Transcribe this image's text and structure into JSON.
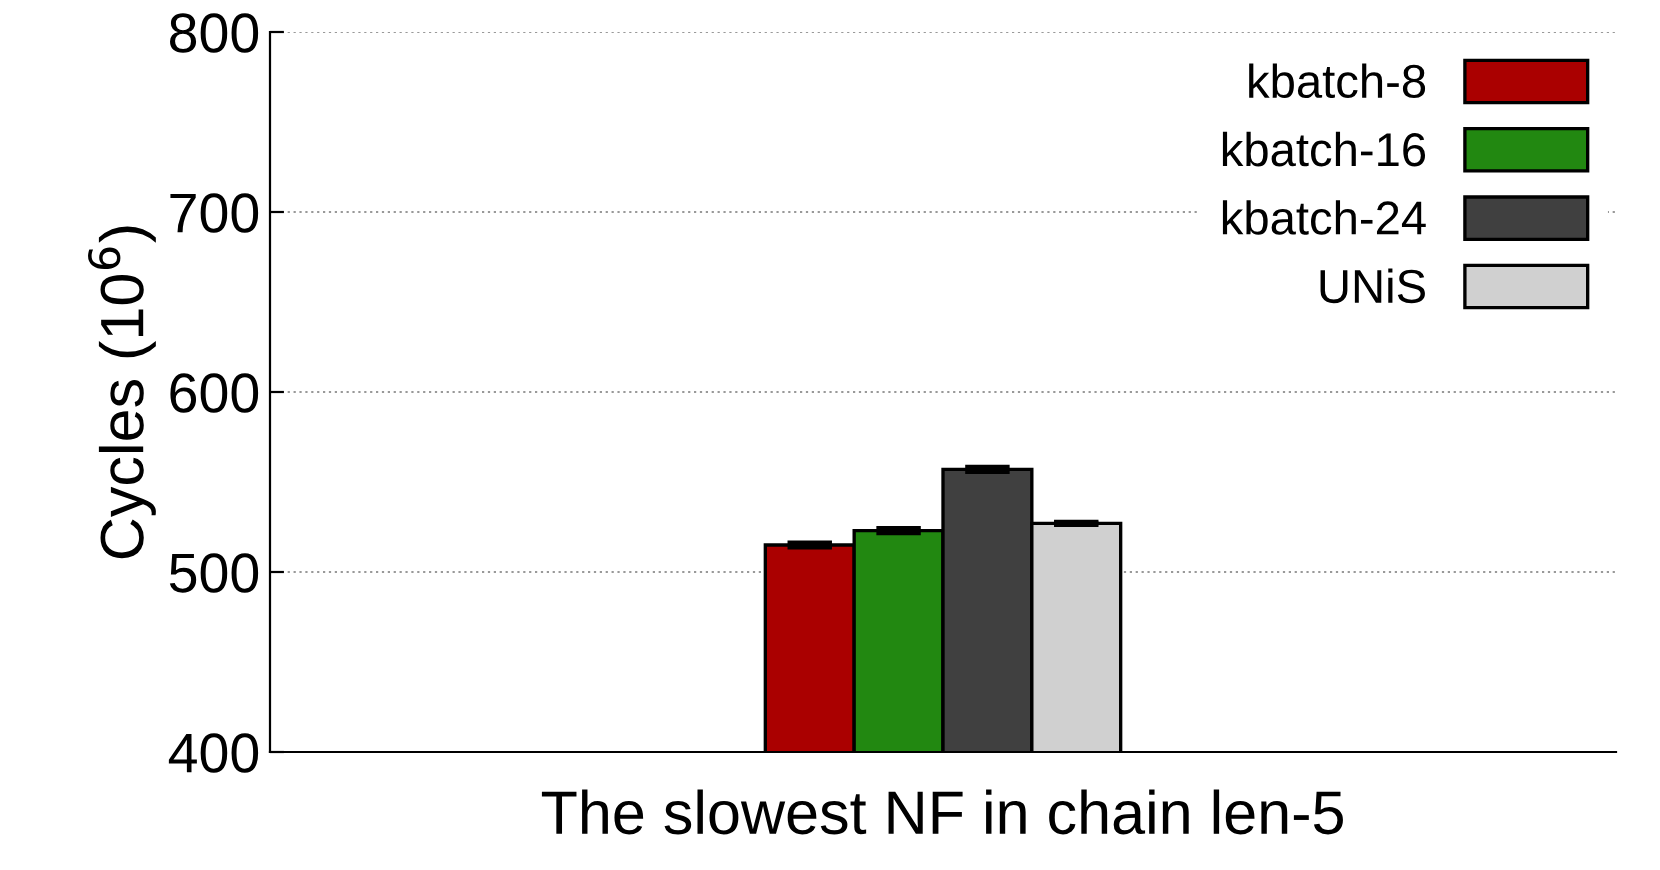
{
  "chart_data": {
    "type": "bar",
    "xlabel": "The slowest NF in chain len-5",
    "ylabel": "Cycles (10$^{6}$)",
    "categories": [
      null
    ],
    "series": [
      {
        "name": "kbatch-8",
        "color": "#aa0000",
        "values": [
          515
        ],
        "errors": [
          1
        ]
      },
      {
        "name": "kbatch-16",
        "color": "#228811",
        "values": [
          523
        ],
        "errors": [
          1
        ]
      },
      {
        "name": "kbatch-24",
        "color": "#404040",
        "values": [
          557
        ],
        "errors": [
          1
        ]
      },
      {
        "name": "UNiS",
        "color": "#d0d0d0",
        "values": [
          527
        ],
        "errors": [
          0.5
        ]
      }
    ],
    "ylim": [
      400,
      800
    ],
    "yticks": [
      400,
      500,
      600,
      700,
      800
    ],
    "grid": "y",
    "legend": "top right"
  }
}
